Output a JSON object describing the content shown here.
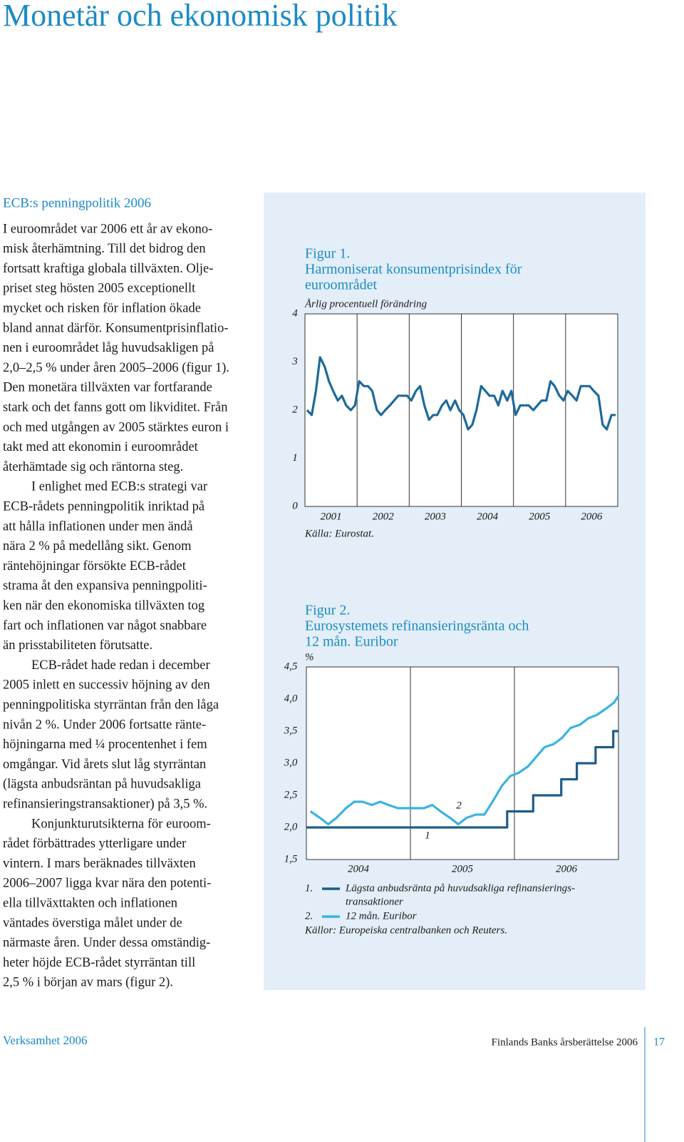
{
  "header": {
    "title": "Monetär och ekonomisk politik"
  },
  "article": {
    "heading": "ECB:s penningpolitik 2006",
    "paragraphs": [
      [
        "I euroområdet var 2006 ett år av ekono-",
        "misk återhämtning. Till det bidrog den",
        "fortsatt kraftiga globala tillväxten. Olje-",
        "priset steg hösten 2005 exceptionellt",
        "mycket och risken för inflation ökade",
        "bland annat därför. Konsumentprisinflatio-",
        "nen i euroområdet låg huvudsakligen på",
        "2,0–2,5 % under åren 2005–2006 (figur 1).",
        "Den monetära tillväxten var fortfarande",
        "stark och det fanns gott om likviditet. Från",
        "och med utgången av 2005 stärktes euron i",
        "takt med att ekonomin i euroområdet",
        "återhämtade sig och räntorna steg."
      ],
      [
        "I enlighet med ECB:s strategi var",
        "ECB-rådets penningpolitik inriktad på",
        "att hålla inflationen under men ändå",
        "nära 2 % på medellång sikt. Genom",
        "räntehöjningar försökte ECB-rådet",
        "strama åt den expansiva penningpoliti-",
        "ken när den ekonomiska tillväxten tog",
        "fart och inflationen var något snabbare",
        "än prisstabiliteten förutsatte."
      ],
      [
        "ECB-rådet hade redan i december",
        "2005 inlett en successiv höjning av den",
        "penningpolitiska styrräntan från den låga",
        "nivån 2 %. Under 2006 fortsatte ränte-",
        "höjningarna med ¼ procentenhet i fem",
        "omgångar. Vid årets slut låg styrräntan",
        "(lägsta anbudsräntan på huvudsakliga",
        "refinansieringstransaktioner) på 3,5 %."
      ],
      [
        "Konjunkturutsikterna för euroom-",
        "rådet förbättrades ytterligare under",
        "vintern. I mars beräknades tillväxten",
        "2006–2007 ligga kvar nära den potenti-",
        "ella tillväxttakten och inflationen",
        "väntades överstiga målet under de",
        "närmaste åren. Under dessa omständig-",
        "heter höjde ECB-rådet styrräntan till",
        "2,5 % i början av mars (figur 2)."
      ]
    ]
  },
  "chart_data": [
    {
      "type": "line",
      "label": "Figur 1.",
      "title": [
        "Harmoniserat konsumentprisindex för",
        "euroområdet"
      ],
      "subtitle": "Årlig procentuell förändring",
      "source": "Källa: Eurostat.",
      "x": [
        2001.04,
        2001.13,
        2001.21,
        2001.29,
        2001.38,
        2001.46,
        2001.54,
        2001.63,
        2001.71,
        2001.79,
        2001.88,
        2001.96,
        2002.04,
        2002.13,
        2002.21,
        2002.29,
        2002.38,
        2002.46,
        2002.54,
        2002.63,
        2002.71,
        2002.79,
        2002.88,
        2002.96,
        2003.04,
        2003.13,
        2003.21,
        2003.29,
        2003.38,
        2003.46,
        2003.54,
        2003.63,
        2003.71,
        2003.79,
        2003.88,
        2003.96,
        2004.04,
        2004.13,
        2004.21,
        2004.29,
        2004.38,
        2004.46,
        2004.54,
        2004.63,
        2004.71,
        2004.79,
        2004.88,
        2004.96,
        2005.04,
        2005.13,
        2005.21,
        2005.29,
        2005.38,
        2005.46,
        2005.54,
        2005.63,
        2005.71,
        2005.79,
        2005.88,
        2005.96,
        2006.04,
        2006.13,
        2006.21,
        2006.29,
        2006.38,
        2006.46,
        2006.54,
        2006.63,
        2006.71,
        2006.79,
        2006.88,
        2006.96
      ],
      "series": [
        {
          "color": "#1e6a9a",
          "values": [
            2.0,
            1.9,
            2.4,
            3.1,
            2.9,
            2.6,
            2.4,
            2.2,
            2.3,
            2.1,
            2.0,
            2.1,
            2.6,
            2.5,
            2.5,
            2.4,
            2.0,
            1.9,
            2.0,
            2.1,
            2.2,
            2.3,
            2.3,
            2.3,
            2.2,
            2.4,
            2.5,
            2.1,
            1.8,
            1.9,
            1.9,
            2.1,
            2.2,
            2.0,
            2.2,
            2.0,
            1.9,
            1.6,
            1.7,
            2.0,
            2.5,
            2.4,
            2.3,
            2.3,
            2.1,
            2.4,
            2.2,
            2.4,
            1.9,
            2.1,
            2.1,
            2.1,
            2.0,
            2.1,
            2.2,
            2.2,
            2.6,
            2.5,
            2.3,
            2.2,
            2.4,
            2.3,
            2.2,
            2.5,
            2.5,
            2.5,
            2.4,
            2.3,
            1.7,
            1.6,
            1.9,
            1.9
          ]
        }
      ],
      "xlim": [
        2001,
        2007
      ],
      "xticks": [
        {
          "value": 2001.5,
          "label": "2001"
        },
        {
          "value": 2002.5,
          "label": "2002"
        },
        {
          "value": 2003.5,
          "label": "2003"
        },
        {
          "value": 2004.5,
          "label": "2004"
        },
        {
          "value": 2005.5,
          "label": "2005"
        },
        {
          "value": 2006.5,
          "label": "2006"
        }
      ],
      "ylim": [
        0,
        4
      ],
      "yticks": [
        0,
        1,
        2,
        3,
        4
      ],
      "grid": "x"
    },
    {
      "type": "line",
      "label": "Figur 2.",
      "title": [
        "Eurosystemets refinansieringsränta och",
        "12 mån. Euribor"
      ],
      "subtitle": "%",
      "source": "Källor: Europeiska centralbanken och Reuters.",
      "series": [
        {
          "label": "1",
          "legend_label": "1.",
          "name": [
            "Lägsta anbudsränta på huvudsakliga refinansierings-",
            "transaktioner"
          ],
          "color": "#1f5c8a",
          "x": [
            2004,
            2005.93,
            2005.93,
            2006.18,
            2006.18,
            2006.45,
            2006.45,
            2006.6,
            2006.6,
            2006.78,
            2006.78,
            2006.95,
            2006.95,
            2007
          ],
          "values": [
            2.0,
            2.0,
            2.25,
            2.25,
            2.5,
            2.5,
            2.75,
            2.75,
            3.0,
            3.0,
            3.25,
            3.25,
            3.5,
            3.5
          ]
        },
        {
          "label": "2",
          "legend_label": "2.",
          "name": [
            "12 mån. Euribor"
          ],
          "color": "#3bb3e0",
          "x": [
            2004.04,
            2004.13,
            2004.21,
            2004.29,
            2004.38,
            2004.46,
            2004.54,
            2004.63,
            2004.71,
            2004.79,
            2004.88,
            2004.96,
            2005.04,
            2005.13,
            2005.21,
            2005.29,
            2005.38,
            2005.46,
            2005.54,
            2005.63,
            2005.71,
            2005.79,
            2005.88,
            2005.96,
            2006.04,
            2006.13,
            2006.21,
            2006.29,
            2006.38,
            2006.46,
            2006.54,
            2006.63,
            2006.71,
            2006.79,
            2006.88,
            2006.96,
            2007
          ],
          "values": [
            2.25,
            2.15,
            2.05,
            2.15,
            2.3,
            2.4,
            2.4,
            2.35,
            2.4,
            2.35,
            2.3,
            2.3,
            2.3,
            2.3,
            2.35,
            2.25,
            2.15,
            2.05,
            2.15,
            2.2,
            2.2,
            2.4,
            2.65,
            2.8,
            2.85,
            2.95,
            3.1,
            3.25,
            3.3,
            3.4,
            3.55,
            3.6,
            3.7,
            3.75,
            3.85,
            3.95,
            4.05
          ]
        }
      ],
      "xlim": [
        2004,
        2007
      ],
      "xticks": [
        {
          "value": 2004.5,
          "label": "2004"
        },
        {
          "value": 2005.5,
          "label": "2005"
        },
        {
          "value": 2006.5,
          "label": "2006"
        }
      ],
      "ylim": [
        1.5,
        4.5
      ],
      "yticks": [
        {
          "value": 1.5,
          "label": "1,5"
        },
        {
          "value": 2.0,
          "label": "2,0"
        },
        {
          "value": 2.5,
          "label": "2,5"
        },
        {
          "value": 3.0,
          "label": "3,0"
        },
        {
          "value": 3.5,
          "label": "3,5"
        },
        {
          "value": 4.0,
          "label": "4,0"
        },
        {
          "value": 4.5,
          "label": "4,5"
        }
      ],
      "grid": "x"
    }
  ],
  "footer": {
    "left": "Verksamhet 2006",
    "right": "Finlands Banks årsberättelse 2006",
    "page": "17"
  }
}
